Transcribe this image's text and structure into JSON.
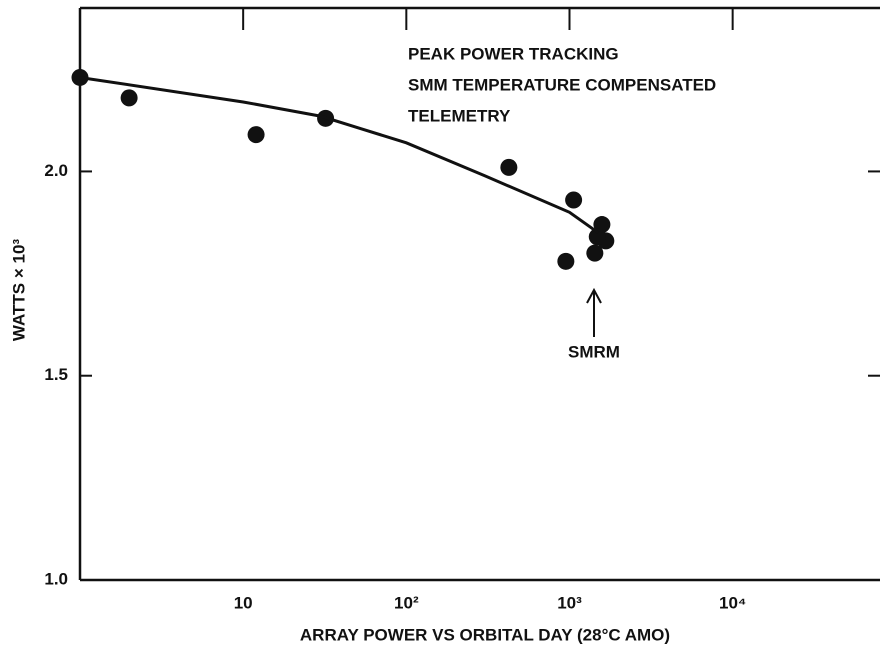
{
  "chart_data": {
    "type": "scatter",
    "log_x": true,
    "xlabel": "ARRAY POWER VS ORBITAL DAY (28°C AMO)",
    "ylabel": "WATTS × 10³",
    "annotations": [
      "PEAK POWER TRACKING",
      "SMM TEMPERATURE COMPENSATED",
      "TELEMETRY",
      "SMRM"
    ],
    "xlim": [
      1,
      80000
    ],
    "xticks": [
      10,
      {
        "value": 100,
        "label": "10²"
      },
      {
        "value": 1000,
        "label": "10³"
      },
      {
        "value": 10000,
        "label": "10⁴"
      }
    ],
    "ylim": [
      1.0,
      2.4
    ],
    "yticks": [
      {
        "value": 1.0,
        "label": "1.0"
      },
      {
        "value": 1.5,
        "label": "1.5"
      },
      {
        "value": 2.0,
        "label": "2.0"
      }
    ],
    "series": [
      {
        "color": "#111111",
        "x": [
          1,
          2,
          12,
          32,
          425,
          1060,
          950,
          1430,
          1580,
          1670,
          1480
        ],
        "values": [
          2.23,
          2.18,
          2.09,
          2.13,
          2.01,
          1.93,
          1.78,
          1.8,
          1.87,
          1.83,
          1.84
        ]
      },
      {
        "color": "#111111",
        "mode": "line",
        "x": [
          1,
          10,
          30,
          100,
          300,
          1000,
          1500
        ],
        "values": [
          2.23,
          2.17,
          2.135,
          2.07,
          1.99,
          1.9,
          1.85
        ]
      }
    ]
  }
}
